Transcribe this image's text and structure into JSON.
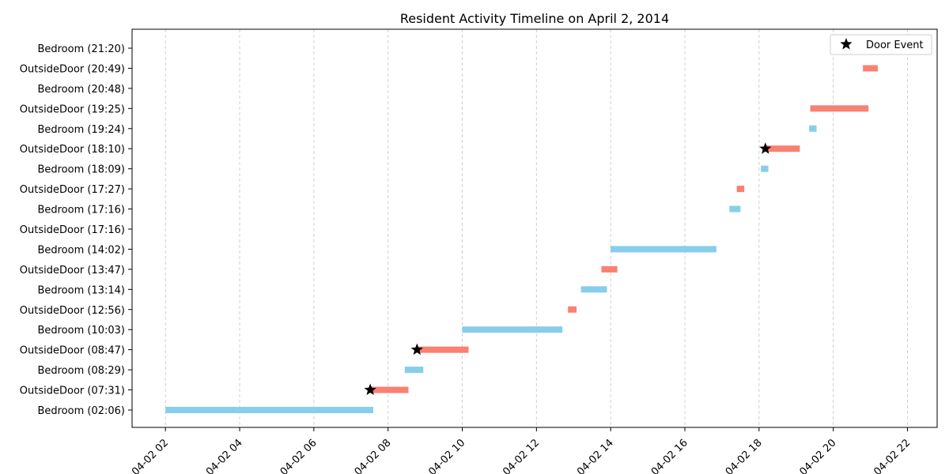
{
  "chart_data": {
    "type": "timeline",
    "title": "Resident Activity Timeline on April 2, 2014",
    "xlabel": "",
    "ylabel": "",
    "x_unit": "hour of day (2014-04-02)",
    "xlim": [
      1.1,
      22.8
    ],
    "grid_x": true,
    "grid_style": "dashed",
    "x_ticks": [
      {
        "value": 2,
        "label": "04-02 02"
      },
      {
        "value": 4,
        "label": "04-02 04"
      },
      {
        "value": 6,
        "label": "04-02 06"
      },
      {
        "value": 8,
        "label": "04-02 08"
      },
      {
        "value": 10,
        "label": "04-02 10"
      },
      {
        "value": 12,
        "label": "04-02 12"
      },
      {
        "value": 14,
        "label": "04-02 14"
      },
      {
        "value": 16,
        "label": "04-02 16"
      },
      {
        "value": 18,
        "label": "04-02 18"
      },
      {
        "value": 20,
        "label": "04-02 20"
      },
      {
        "value": 22,
        "label": "04-02 22"
      }
    ],
    "colors": {
      "Bedroom": "#87CEEB",
      "OutsideDoor": "#FA8072",
      "door_marker": "#000000"
    },
    "rows": [
      {
        "label": "Bedroom (02:06)",
        "location": "Bedroom",
        "start": 2.0,
        "end": 7.6
      },
      {
        "label": "OutsideDoor (07:31)",
        "location": "OutsideDoor",
        "start": 7.52,
        "end": 8.55
      },
      {
        "label": "Bedroom (08:29)",
        "location": "Bedroom",
        "start": 8.45,
        "end": 8.95
      },
      {
        "label": "OutsideDoor (08:47)",
        "location": "OutsideDoor",
        "start": 8.78,
        "end": 10.17
      },
      {
        "label": "Bedroom (10:03)",
        "location": "Bedroom",
        "start": 10.0,
        "end": 12.7
      },
      {
        "label": "OutsideDoor (12:56)",
        "location": "OutsideDoor",
        "start": 12.85,
        "end": 13.08
      },
      {
        "label": "Bedroom (13:14)",
        "location": "Bedroom",
        "start": 13.2,
        "end": 13.9
      },
      {
        "label": "OutsideDoor (13:47)",
        "location": "OutsideDoor",
        "start": 13.75,
        "end": 14.18
      },
      {
        "label": "Bedroom (14:02)",
        "location": "Bedroom",
        "start": 14.0,
        "end": 16.85
      },
      {
        "label": "OutsideDoor (17:16)",
        "location": "OutsideDoor",
        "start": null,
        "end": null
      },
      {
        "label": "Bedroom (17:16)",
        "location": "Bedroom",
        "start": 17.2,
        "end": 17.5
      },
      {
        "label": "OutsideDoor (17:27)",
        "location": "OutsideDoor",
        "start": 17.4,
        "end": 17.6
      },
      {
        "label": "Bedroom (18:09)",
        "location": "Bedroom",
        "start": 18.05,
        "end": 18.25
      },
      {
        "label": "OutsideDoor (18:10)",
        "location": "OutsideDoor",
        "start": 18.17,
        "end": 19.1
      },
      {
        "label": "Bedroom (19:24)",
        "location": "Bedroom",
        "start": 19.35,
        "end": 19.55
      },
      {
        "label": "OutsideDoor (19:25)",
        "location": "OutsideDoor",
        "start": 19.38,
        "end": 20.95
      },
      {
        "label": "Bedroom (20:48)",
        "location": "Bedroom",
        "start": null,
        "end": null
      },
      {
        "label": "OutsideDoor (20:49)",
        "location": "OutsideDoor",
        "start": 20.8,
        "end": 21.2
      },
      {
        "label": "Bedroom (21:20)",
        "location": "Bedroom",
        "start": null,
        "end": null
      }
    ],
    "door_events": [
      {
        "row": 1,
        "x": 7.52
      },
      {
        "row": 3,
        "x": 8.78
      },
      {
        "row": 13,
        "x": 18.17
      }
    ],
    "legend": {
      "entries": [
        {
          "label": "Door Event",
          "marker": "star"
        }
      ],
      "position": "top-right"
    }
  }
}
